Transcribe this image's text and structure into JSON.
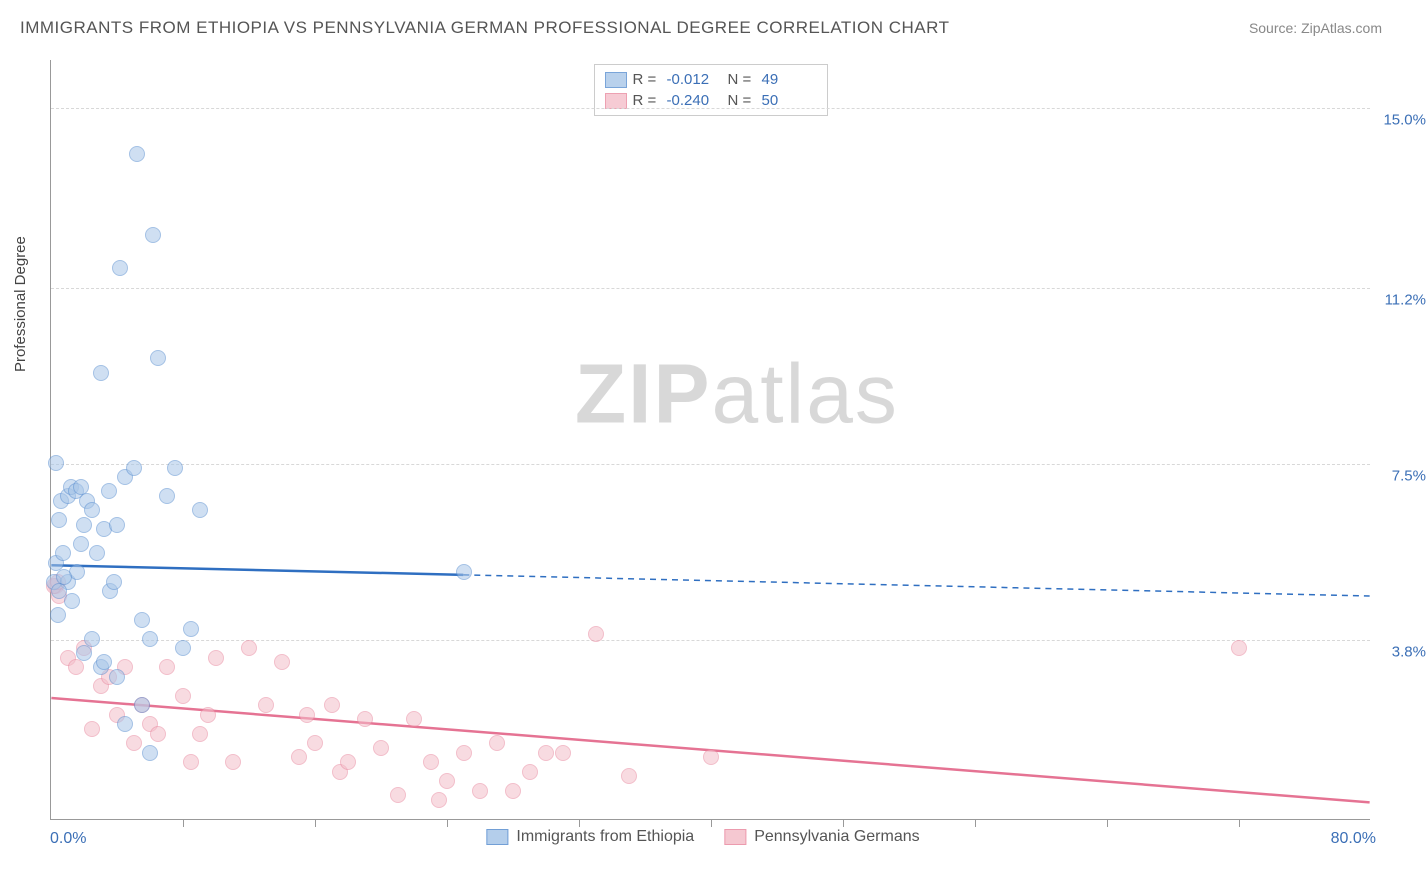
{
  "title": "IMMIGRANTS FROM ETHIOPIA VS PENNSYLVANIA GERMAN PROFESSIONAL DEGREE CORRELATION CHART",
  "source_label": "Source: ",
  "source_name": "ZipAtlas.com",
  "y_axis_title": "Professional Degree",
  "watermark_zip": "ZIP",
  "watermark_atlas": "atlas",
  "chart": {
    "type": "scatter",
    "xlim": [
      0,
      80
    ],
    "ylim": [
      0,
      16
    ],
    "x_min_label": "0.0%",
    "x_max_label": "80.0%",
    "y_ticks": [
      3.8,
      7.5,
      11.2,
      15.0
    ],
    "y_tick_labels": [
      "3.8%",
      "7.5%",
      "11.2%",
      "15.0%"
    ],
    "x_tick_positions": [
      8,
      16,
      24,
      32,
      40,
      48,
      56,
      64,
      72
    ],
    "background_color": "#ffffff",
    "grid_color": "#d8d8d8",
    "axis_color": "#999999",
    "point_radius": 8,
    "series": [
      {
        "key": "ethiopia",
        "label": "Immigrants from Ethiopia",
        "fill_color": "#a8c6e8",
        "fill_opacity": 0.55,
        "stroke_color": "#5a8fd0",
        "trend_color": "#2f6fc1",
        "trend_width": 2.5,
        "dash_color": "#2f6fc1",
        "R": "-0.012",
        "N": "49",
        "solid_x_max": 25,
        "trend": {
          "y_at_x0": 5.35,
          "y_at_xmax": 4.7
        },
        "points": [
          [
            0.2,
            5.0
          ],
          [
            0.3,
            5.4
          ],
          [
            0.4,
            4.3
          ],
          [
            0.5,
            6.3
          ],
          [
            0.6,
            6.7
          ],
          [
            0.7,
            5.6
          ],
          [
            0.3,
            7.5
          ],
          [
            1.0,
            6.8
          ],
          [
            1.2,
            7.0
          ],
          [
            1.5,
            6.9
          ],
          [
            1.8,
            7.0
          ],
          [
            2.0,
            6.2
          ],
          [
            2.2,
            6.7
          ],
          [
            2.5,
            6.5
          ],
          [
            3.0,
            9.4
          ],
          [
            3.2,
            6.1
          ],
          [
            3.5,
            6.9
          ],
          [
            4.0,
            6.2
          ],
          [
            4.2,
            11.6
          ],
          [
            4.5,
            7.2
          ],
          [
            5.0,
            7.4
          ],
          [
            5.2,
            14.0
          ],
          [
            5.5,
            4.2
          ],
          [
            6.0,
            3.8
          ],
          [
            6.2,
            12.3
          ],
          [
            6.5,
            9.7
          ],
          [
            7.0,
            6.8
          ],
          [
            7.5,
            7.4
          ],
          [
            8.0,
            3.6
          ],
          [
            8.5,
            4.0
          ],
          [
            9.0,
            6.5
          ],
          [
            2.8,
            5.6
          ],
          [
            3.6,
            4.8
          ],
          [
            3.0,
            3.2
          ],
          [
            4.0,
            3.0
          ],
          [
            4.5,
            2.0
          ],
          [
            5.5,
            2.4
          ],
          [
            6.0,
            1.4
          ],
          [
            2.0,
            3.5
          ],
          [
            2.5,
            3.8
          ],
          [
            3.2,
            3.3
          ],
          [
            1.0,
            5.0
          ],
          [
            1.3,
            4.6
          ],
          [
            1.6,
            5.2
          ],
          [
            1.8,
            5.8
          ],
          [
            0.8,
            5.1
          ],
          [
            3.8,
            5.0
          ],
          [
            25.0,
            5.2
          ],
          [
            0.5,
            4.8
          ]
        ]
      },
      {
        "key": "pa_german",
        "label": "Pennsylvania Germans",
        "fill_color": "#f4bfca",
        "fill_opacity": 0.55,
        "stroke_color": "#e98aa0",
        "trend_color": "#e57393",
        "trend_width": 2.5,
        "R": "-0.240",
        "N": "50",
        "solid_x_max": 80,
        "trend": {
          "y_at_x0": 2.55,
          "y_at_xmax": 0.35
        },
        "points": [
          [
            0.3,
            4.9
          ],
          [
            0.5,
            4.7
          ],
          [
            1.0,
            3.4
          ],
          [
            1.5,
            3.2
          ],
          [
            2.0,
            3.6
          ],
          [
            2.5,
            1.9
          ],
          [
            3.0,
            2.8
          ],
          [
            3.5,
            3.0
          ],
          [
            4.0,
            2.2
          ],
          [
            4.5,
            3.2
          ],
          [
            5.0,
            1.6
          ],
          [
            5.5,
            2.4
          ],
          [
            6.0,
            2.0
          ],
          [
            6.5,
            1.8
          ],
          [
            7.0,
            3.2
          ],
          [
            8.0,
            2.6
          ],
          [
            8.5,
            1.2
          ],
          [
            9.0,
            1.8
          ],
          [
            9.5,
            2.2
          ],
          [
            10.0,
            3.4
          ],
          [
            11.0,
            1.2
          ],
          [
            12.0,
            3.6
          ],
          [
            13.0,
            2.4
          ],
          [
            14.0,
            3.3
          ],
          [
            15.0,
            1.3
          ],
          [
            15.5,
            2.2
          ],
          [
            16.0,
            1.6
          ],
          [
            17.0,
            2.4
          ],
          [
            17.5,
            1.0
          ],
          [
            18.0,
            1.2
          ],
          [
            19.0,
            2.1
          ],
          [
            20.0,
            1.5
          ],
          [
            21.0,
            0.5
          ],
          [
            22.0,
            2.1
          ],
          [
            23.0,
            1.2
          ],
          [
            23.5,
            0.4
          ],
          [
            24.0,
            0.8
          ],
          [
            25.0,
            1.4
          ],
          [
            26.0,
            0.6
          ],
          [
            27.0,
            1.6
          ],
          [
            28.0,
            0.6
          ],
          [
            30.0,
            1.4
          ],
          [
            33.0,
            3.9
          ],
          [
            31.0,
            1.4
          ],
          [
            29.0,
            1.0
          ],
          [
            35.0,
            0.9
          ],
          [
            40.0,
            1.3
          ],
          [
            72.0,
            3.6
          ],
          [
            0.2,
            4.9
          ],
          [
            0.4,
            5.0
          ]
        ]
      }
    ]
  },
  "legend_top": {
    "R_label": "R =",
    "N_label": "N ="
  }
}
